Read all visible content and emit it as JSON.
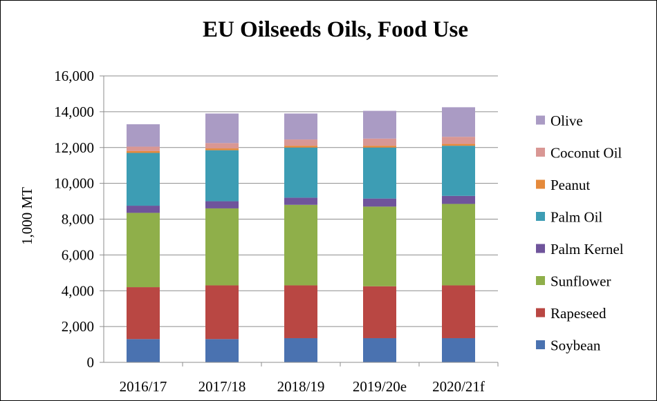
{
  "chart_data": {
    "type": "bar",
    "stacked": true,
    "title": "EU Oilseeds Oils, Food Use",
    "ylabel": "1,000 MT",
    "xlabel": "",
    "ylim": [
      0,
      16000
    ],
    "yticks": [
      0,
      2000,
      4000,
      6000,
      8000,
      10000,
      12000,
      14000,
      16000
    ],
    "ytick_labels": [
      "0",
      "2,000",
      "4,000",
      "6,000",
      "8,000",
      "10,000",
      "12,000",
      "14,000",
      "16,000"
    ],
    "grid": "horizontal major",
    "legend_position": "right",
    "categories": [
      "2016/17",
      "2017/18",
      "2018/19",
      "2019/20e",
      "2020/21f"
    ],
    "series": [
      {
        "name": "Soybean",
        "color": "#4a72b0",
        "values": [
          1300,
          1300,
          1350,
          1350,
          1350
        ]
      },
      {
        "name": "Rapeseed",
        "color": "#b94743",
        "values": [
          2900,
          3000,
          2950,
          2900,
          2950
        ]
      },
      {
        "name": "Sunflower",
        "color": "#8faf4a",
        "values": [
          4150,
          4300,
          4500,
          4450,
          4550
        ]
      },
      {
        "name": "Palm Kernel",
        "color": "#6f549b",
        "values": [
          400,
          400,
          400,
          450,
          450
        ]
      },
      {
        "name": "Palm Oil",
        "color": "#3d9db4",
        "values": [
          2950,
          2850,
          2800,
          2850,
          2800
        ]
      },
      {
        "name": "Peanut",
        "color": "#e58a3b",
        "values": [
          100,
          100,
          100,
          100,
          100
        ]
      },
      {
        "name": "Coconut Oil",
        "color": "#d99794",
        "values": [
          250,
          300,
          350,
          400,
          400
        ]
      },
      {
        "name": "Olive",
        "color": "#aa9bc4",
        "values": [
          1250,
          1650,
          1450,
          1550,
          1650
        ]
      }
    ]
  }
}
